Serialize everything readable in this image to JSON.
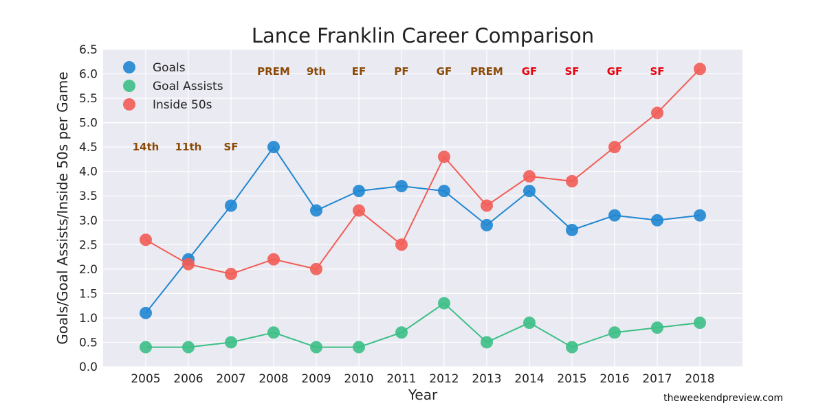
{
  "chart_data": {
    "type": "line",
    "title": "Lance Franklin Career Comparison",
    "xlabel": "Year",
    "ylabel": "Goals/Goal Assists/Inside 50s per Game",
    "ylim": [
      0,
      6.5
    ],
    "yticks": [
      "0.0",
      "0.5",
      "1.0",
      "1.5",
      "2.0",
      "2.5",
      "3.0",
      "3.5",
      "4.0",
      "4.5",
      "5.0",
      "5.5",
      "6.0",
      "6.5"
    ],
    "x": [
      "2005",
      "2006",
      "2007",
      "2008",
      "2009",
      "2010",
      "2011",
      "2012",
      "2013",
      "2014",
      "2015",
      "2016",
      "2017",
      "2018"
    ],
    "series": [
      {
        "name": "Goals",
        "color": "#1f86d1",
        "values": [
          1.1,
          2.2,
          3.3,
          4.5,
          3.2,
          3.6,
          3.7,
          3.6,
          2.9,
          3.6,
          2.8,
          3.1,
          3.0,
          3.1
        ]
      },
      {
        "name": "Goal Assists",
        "color": "#3cbf86",
        "values": [
          0.4,
          0.4,
          0.5,
          0.7,
          0.4,
          0.4,
          0.7,
          1.3,
          0.5,
          0.9,
          0.4,
          0.7,
          0.8,
          0.9
        ]
      },
      {
        "name": "Inside 50s",
        "color": "#f25c55",
        "values": [
          2.6,
          2.1,
          1.9,
          2.2,
          2.0,
          3.2,
          2.5,
          4.3,
          3.3,
          3.9,
          3.8,
          4.5,
          5.2,
          6.1
        ]
      }
    ],
    "annotations": [
      {
        "year": "2005",
        "text": "14th",
        "y": 4.5,
        "color": "#8b4a06"
      },
      {
        "year": "2006",
        "text": "11th",
        "y": 4.5,
        "color": "#8b4a06"
      },
      {
        "year": "2007",
        "text": "SF",
        "y": 4.5,
        "color": "#8b4a06"
      },
      {
        "year": "2008",
        "text": "PREM",
        "y": 6.05,
        "color": "#8b4a06"
      },
      {
        "year": "2009",
        "text": "9th",
        "y": 6.05,
        "color": "#8b4a06"
      },
      {
        "year": "2010",
        "text": "EF",
        "y": 6.05,
        "color": "#8b4a06"
      },
      {
        "year": "2011",
        "text": "PF",
        "y": 6.05,
        "color": "#8b4a06"
      },
      {
        "year": "2012",
        "text": "GF",
        "y": 6.05,
        "color": "#8b4a06"
      },
      {
        "year": "2013",
        "text": "PREM",
        "y": 6.05,
        "color": "#8b4a06"
      },
      {
        "year": "2014",
        "text": "GF",
        "y": 6.05,
        "color": "#e8000b"
      },
      {
        "year": "2015",
        "text": "SF",
        "y": 6.05,
        "color": "#e8000b"
      },
      {
        "year": "2016",
        "text": "GF",
        "y": 6.05,
        "color": "#e8000b"
      },
      {
        "year": "2017",
        "text": "SF",
        "y": 6.05,
        "color": "#e8000b"
      }
    ],
    "grid": true,
    "legend": "top-left",
    "plot_background": "#eaeaf2"
  },
  "watermark": "theweekendpreview.com"
}
